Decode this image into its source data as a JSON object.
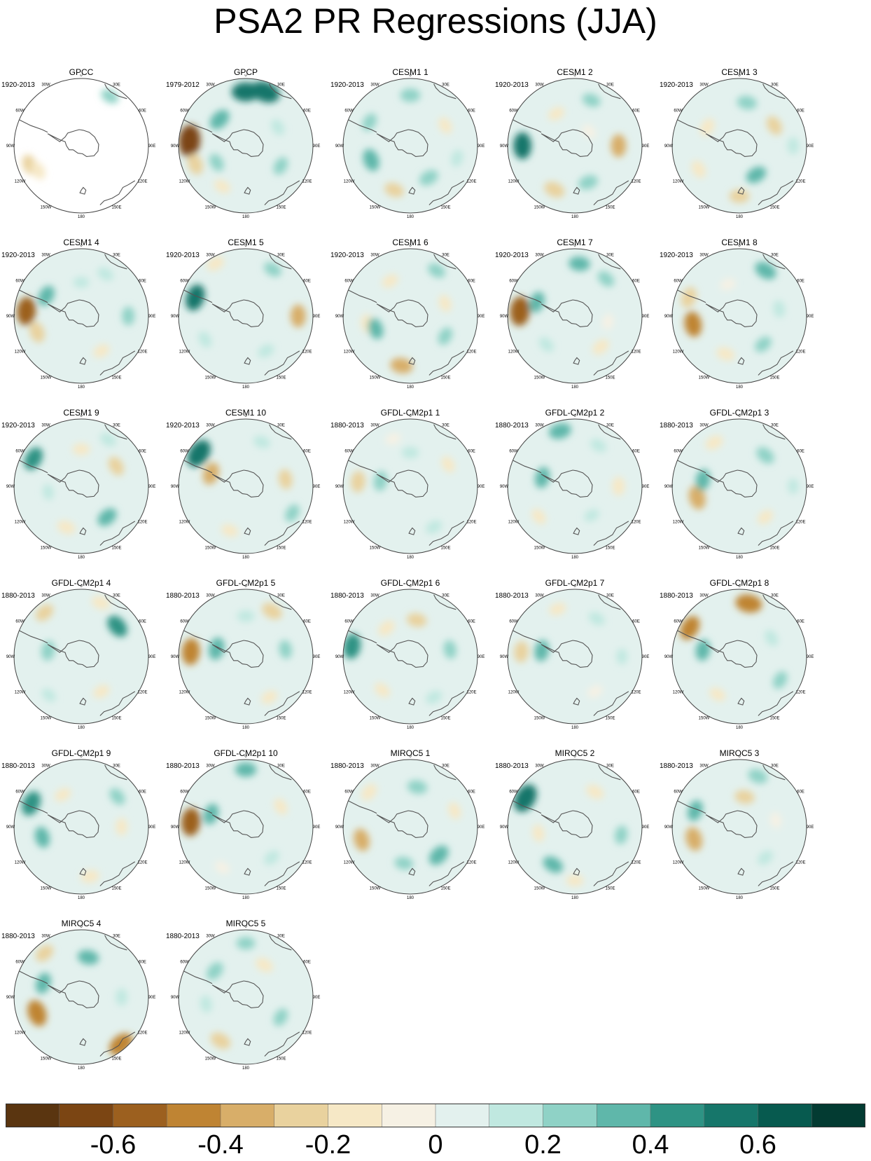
{
  "title": "PSA2 PR Regressions (JJA)",
  "lon_labels": [
    "0",
    "30E",
    "60E",
    "90E",
    "120E",
    "150E",
    "180",
    "150W",
    "120W",
    "90W",
    "60W",
    "30W"
  ],
  "panels": [
    {
      "title": "GPCC",
      "years": "1920-2013"
    },
    {
      "title": "GPCP",
      "years": "1979-2012"
    },
    {
      "title": "CESM1 1",
      "years": "1920-2013"
    },
    {
      "title": "CESM1 2",
      "years": "1920-2013"
    },
    {
      "title": "CESM1 3",
      "years": "1920-2013"
    },
    {
      "title": "CESM1 4",
      "years": "1920-2013"
    },
    {
      "title": "CESM1 5",
      "years": "1920-2013"
    },
    {
      "title": "CESM1 6",
      "years": "1920-2013"
    },
    {
      "title": "CESM1 7",
      "years": "1920-2013"
    },
    {
      "title": "CESM1 8",
      "years": "1920-2013"
    },
    {
      "title": "CESM1 9",
      "years": "1920-2013"
    },
    {
      "title": "CESM1 10",
      "years": "1920-2013"
    },
    {
      "title": "GFDL-CM2p1 1",
      "years": "1880-2013"
    },
    {
      "title": "GFDL-CM2p1 2",
      "years": "1880-2013"
    },
    {
      "title": "GFDL-CM2p1 3",
      "years": "1880-2013"
    },
    {
      "title": "GFDL-CM2p1 4",
      "years": "1880-2013"
    },
    {
      "title": "GFDL-CM2p1 5",
      "years": "1880-2013"
    },
    {
      "title": "GFDL-CM2p1 6",
      "years": "1880-2013"
    },
    {
      "title": "GFDL-CM2p1 7",
      "years": "1880-2013"
    },
    {
      "title": "GFDL-CM2p1 8",
      "years": "1880-2013"
    },
    {
      "title": "GFDL-CM2p1 9",
      "years": "1880-2013"
    },
    {
      "title": "GFDL-CM2p1 10",
      "years": "1880-2013"
    },
    {
      "title": "MIROC5 1",
      "years": "1880-2013"
    },
    {
      "title": "MIROC5 2",
      "years": "1880-2013"
    },
    {
      "title": "MIROC5 3",
      "years": "1880-2013"
    },
    {
      "title": "MIROC5 4",
      "years": "1880-2013"
    },
    {
      "title": "MIROC5 5",
      "years": "1880-2013"
    }
  ],
  "colorbar": {
    "colors": [
      "#5a3510",
      "#7b4513",
      "#9c601f",
      "#bf8433",
      "#d8ae69",
      "#e9d29e",
      "#f6e8c6",
      "#f6f1e4",
      "#e3f1ee",
      "#c0e8e0",
      "#8fd2c6",
      "#5fb7aa",
      "#2e9384",
      "#16766a",
      "#075a4f",
      "#033b32"
    ],
    "tick_values": [
      -0.6,
      -0.4,
      -0.2,
      0,
      0.2,
      0.4,
      0.6
    ],
    "tick_labels": [
      "-0.6",
      "-0.4",
      "-0.2",
      "0",
      "0.2",
      "0.4",
      "0.6"
    ]
  },
  "chart_data": {
    "type": "heatmap",
    "title": "PSA2 PR Regressions (JJA)",
    "projection": "south polar stereographic",
    "value_range": [
      -0.8,
      0.8
    ],
    "levels": [
      -0.8,
      -0.7,
      -0.6,
      -0.5,
      -0.4,
      -0.3,
      -0.2,
      -0.1,
      0,
      0.1,
      0.2,
      0.3,
      0.4,
      0.5,
      0.6,
      0.7,
      0.8
    ],
    "panel_count": 27,
    "features": [
      [
        {
          "lon": -70,
          "r": 0.82,
          "v": -0.25
        },
        {
          "lon": -60,
          "r": 0.74,
          "v": -0.2
        },
        {
          "lon": 150,
          "r": 0.85,
          "v": 0.2
        }
      ],
      [
        {
          "lon": -95,
          "r": 0.84,
          "v": -0.7
        },
        {
          "lon": -70,
          "r": 0.8,
          "v": -0.3
        },
        {
          "lon": -135,
          "r": 0.55,
          "v": 0.35
        },
        {
          "lon": 180,
          "r": 0.8,
          "v": 0.55
        },
        {
          "lon": 160,
          "r": 0.85,
          "v": 0.6
        },
        {
          "lon": -60,
          "r": 0.5,
          "v": 0.2
        },
        {
          "lon": 60,
          "r": 0.6,
          "v": 0.2
        },
        {
          "lon": -30,
          "r": 0.7,
          "v": -0.15
        },
        {
          "lon": 120,
          "r": 0.55,
          "v": 0.15
        }
      ],
      [
        {
          "lon": -20,
          "r": 0.7,
          "v": -0.25
        },
        {
          "lon": 30,
          "r": 0.55,
          "v": 0.25
        },
        {
          "lon": -70,
          "r": 0.62,
          "v": 0.35
        },
        {
          "lon": 180,
          "r": 0.75,
          "v": 0.25
        },
        {
          "lon": 120,
          "r": 0.6,
          "v": -0.15
        },
        {
          "lon": -120,
          "r": 0.7,
          "v": 0.2
        },
        {
          "lon": 75,
          "r": 0.72,
          "v": 0.15
        }
      ],
      [
        {
          "lon": -25,
          "r": 0.72,
          "v": -0.3
        },
        {
          "lon": -90,
          "r": 0.78,
          "v": 0.5
        },
        {
          "lon": 90,
          "r": 0.65,
          "v": -0.35
        },
        {
          "lon": 20,
          "r": 0.58,
          "v": 0.25
        },
        {
          "lon": 160,
          "r": 0.72,
          "v": 0.2
        },
        {
          "lon": -150,
          "r": 0.55,
          "v": -0.15
        },
        {
          "lon": 135,
          "r": 0.3,
          "v": -0.1
        }
      ],
      [
        {
          "lon": 0,
          "r": 0.75,
          "v": -0.25
        },
        {
          "lon": 30,
          "r": 0.5,
          "v": 0.3
        },
        {
          "lon": -120,
          "r": 0.55,
          "v": -0.2
        },
        {
          "lon": 120,
          "r": 0.6,
          "v": -0.25
        },
        {
          "lon": 170,
          "r": 0.65,
          "v": 0.25
        },
        {
          "lon": -60,
          "r": 0.7,
          "v": -0.2
        },
        {
          "lon": 90,
          "r": 0.8,
          "v": 0.15
        }
      ],
      [
        {
          "lon": -95,
          "r": 0.82,
          "v": -0.55
        },
        {
          "lon": -70,
          "r": 0.7,
          "v": -0.3
        },
        {
          "lon": -120,
          "r": 0.6,
          "v": 0.3
        },
        {
          "lon": 30,
          "r": 0.6,
          "v": -0.15
        },
        {
          "lon": 90,
          "r": 0.7,
          "v": 0.2
        },
        {
          "lon": 150,
          "r": 0.72,
          "v": 0.15
        },
        {
          "lon": 180,
          "r": 0.5,
          "v": 0.1
        }
      ],
      [
        {
          "lon": -110,
          "r": 0.8,
          "v": 0.5
        },
        {
          "lon": 90,
          "r": 0.78,
          "v": -0.35
        },
        {
          "lon": -150,
          "r": 0.9,
          "v": -0.2
        },
        {
          "lon": 30,
          "r": 0.6,
          "v": 0.15
        },
        {
          "lon": 150,
          "r": 0.8,
          "v": 0.2
        },
        {
          "lon": -60,
          "r": 0.7,
          "v": 0.15
        }
      ],
      [
        {
          "lon": -10,
          "r": 0.75,
          "v": -0.35
        },
        {
          "lon": -80,
          "r": 0.65,
          "v": -0.2
        },
        {
          "lon": -70,
          "r": 0.55,
          "v": 0.3
        },
        {
          "lon": 60,
          "r": 0.6,
          "v": 0.2
        },
        {
          "lon": 150,
          "r": 0.78,
          "v": 0.2
        },
        {
          "lon": -150,
          "r": 0.6,
          "v": -0.15
        },
        {
          "lon": 110,
          "r": 0.55,
          "v": -0.15
        }
      ],
      [
        {
          "lon": -95,
          "r": 0.82,
          "v": -0.6
        },
        {
          "lon": -110,
          "r": 0.6,
          "v": 0.3
        },
        {
          "lon": 175,
          "r": 0.78,
          "v": 0.3
        },
        {
          "lon": 40,
          "r": 0.6,
          "v": -0.2
        },
        {
          "lon": 140,
          "r": 0.72,
          "v": 0.2
        },
        {
          "lon": -45,
          "r": 0.6,
          "v": 0.15
        },
        {
          "lon": 80,
          "r": 0.5,
          "v": -0.1
        }
      ],
      [
        {
          "lon": -80,
          "r": 0.7,
          "v": -0.45
        },
        {
          "lon": -110,
          "r": 0.8,
          "v": -0.3
        },
        {
          "lon": 150,
          "r": 0.78,
          "v": 0.35
        },
        {
          "lon": -20,
          "r": 0.6,
          "v": -0.2
        },
        {
          "lon": 40,
          "r": 0.55,
          "v": 0.2
        },
        {
          "lon": 100,
          "r": 0.6,
          "v": 0.15
        },
        {
          "lon": -160,
          "r": 0.5,
          "v": -0.1
        }
      ],
      [
        {
          "lon": -120,
          "r": 0.82,
          "v": 0.4
        },
        {
          "lon": 120,
          "r": 0.6,
          "v": -0.25
        },
        {
          "lon": -20,
          "r": 0.65,
          "v": -0.2
        },
        {
          "lon": 40,
          "r": 0.6,
          "v": 0.3
        },
        {
          "lon": 180,
          "r": 0.55,
          "v": -0.15
        },
        {
          "lon": 150,
          "r": 0.8,
          "v": 0.15
        },
        {
          "lon": -80,
          "r": 0.5,
          "v": 0.1
        }
      ],
      [
        {
          "lon": -125,
          "r": 0.85,
          "v": 0.6
        },
        {
          "lon": -110,
          "r": 0.55,
          "v": -0.35
        },
        {
          "lon": 100,
          "r": 0.6,
          "v": -0.25
        },
        {
          "lon": 60,
          "r": 0.8,
          "v": 0.2
        },
        {
          "lon": -20,
          "r": 0.7,
          "v": -0.15
        },
        {
          "lon": 160,
          "r": 0.7,
          "v": 0.15
        }
      ],
      [
        {
          "lon": -95,
          "r": 0.78,
          "v": -0.3
        },
        {
          "lon": -100,
          "r": 0.45,
          "v": 0.25
        },
        {
          "lon": 180,
          "r": 0.5,
          "v": 0.15
        },
        {
          "lon": 30,
          "r": 0.7,
          "v": 0.15
        },
        {
          "lon": 120,
          "r": 0.65,
          "v": -0.15
        },
        {
          "lon": -160,
          "r": 0.75,
          "v": -0.1
        }
      ],
      [
        {
          "lon": -105,
          "r": 0.5,
          "v": 0.3
        },
        {
          "lon": -165,
          "r": 0.85,
          "v": 0.35
        },
        {
          "lon": 90,
          "r": 0.65,
          "v": -0.2
        },
        {
          "lon": -50,
          "r": 0.7,
          "v": -0.15
        },
        {
          "lon": 150,
          "r": 0.7,
          "v": 0.15
        },
        {
          "lon": 30,
          "r": 0.5,
          "v": 0.1
        }
      ],
      [
        {
          "lon": -75,
          "r": 0.65,
          "v": -0.4
        },
        {
          "lon": -100,
          "r": 0.55,
          "v": 0.3
        },
        {
          "lon": 140,
          "r": 0.6,
          "v": 0.25
        },
        {
          "lon": -150,
          "r": 0.75,
          "v": -0.2
        },
        {
          "lon": 40,
          "r": 0.6,
          "v": -0.15
        },
        {
          "lon": 90,
          "r": 0.8,
          "v": 0.1
        }
      ],
      [
        {
          "lon": 130,
          "r": 0.7,
          "v": 0.4
        },
        {
          "lon": -100,
          "r": 0.5,
          "v": 0.25
        },
        {
          "lon": -140,
          "r": 0.85,
          "v": -0.25
        },
        {
          "lon": 160,
          "r": 0.85,
          "v": -0.2
        },
        {
          "lon": 30,
          "r": 0.6,
          "v": -0.15
        },
        {
          "lon": -40,
          "r": 0.75,
          "v": 0.1
        }
      ],
      [
        {
          "lon": -95,
          "r": 0.82,
          "v": -0.5
        },
        {
          "lon": -105,
          "r": 0.45,
          "v": 0.35
        },
        {
          "lon": 150,
          "r": 0.78,
          "v": -0.3
        },
        {
          "lon": 100,
          "r": 0.6,
          "v": 0.2
        },
        {
          "lon": 30,
          "r": 0.7,
          "v": -0.15
        },
        {
          "lon": 180,
          "r": 0.6,
          "v": 0.15
        }
      ],
      [
        {
          "lon": -100,
          "r": 0.88,
          "v": 0.45
        },
        {
          "lon": -140,
          "r": 0.55,
          "v": -0.2
        },
        {
          "lon": 100,
          "r": 0.6,
          "v": 0.2
        },
        {
          "lon": 170,
          "r": 0.55,
          "v": -0.25
        },
        {
          "lon": 30,
          "r": 0.7,
          "v": 0.15
        },
        {
          "lon": -40,
          "r": 0.65,
          "v": -0.15
        }
      ],
      [
        {
          "lon": -95,
          "r": 0.8,
          "v": -0.3
        },
        {
          "lon": -100,
          "r": 0.5,
          "v": 0.3
        },
        {
          "lon": 150,
          "r": 0.65,
          "v": 0.15
        },
        {
          "lon": 30,
          "r": 0.6,
          "v": -0.1
        },
        {
          "lon": -160,
          "r": 0.75,
          "v": -0.15
        },
        {
          "lon": 90,
          "r": 0.7,
          "v": 0.1
        }
      ],
      [
        {
          "lon": -120,
          "r": 0.85,
          "v": -0.45
        },
        {
          "lon": 170,
          "r": 0.8,
          "v": -0.5
        },
        {
          "lon": -100,
          "r": 0.55,
          "v": 0.3
        },
        {
          "lon": 60,
          "r": 0.7,
          "v": 0.2
        },
        {
          "lon": 120,
          "r": 0.55,
          "v": 0.15
        },
        {
          "lon": -30,
          "r": 0.65,
          "v": -0.15
        }
      ],
      [
        {
          "lon": -115,
          "r": 0.82,
          "v": 0.45
        },
        {
          "lon": -75,
          "r": 0.6,
          "v": 0.3
        },
        {
          "lon": 10,
          "r": 0.75,
          "v": -0.2
        },
        {
          "lon": 130,
          "r": 0.7,
          "v": 0.2
        },
        {
          "lon": 90,
          "r": 0.6,
          "v": -0.15
        },
        {
          "lon": -150,
          "r": 0.55,
          "v": -0.15
        }
      ],
      [
        {
          "lon": -95,
          "r": 0.82,
          "v": -0.55
        },
        {
          "lon": -110,
          "r": 0.55,
          "v": 0.3
        },
        {
          "lon": 180,
          "r": 0.85,
          "v": 0.3
        },
        {
          "lon": 40,
          "r": 0.6,
          "v": 0.15
        },
        {
          "lon": 120,
          "r": 0.6,
          "v": -0.15
        },
        {
          "lon": -30,
          "r": 0.7,
          "v": -0.1
        }
      ],
      [
        {
          "lon": -75,
          "r": 0.75,
          "v": -0.35
        },
        {
          "lon": 45,
          "r": 0.6,
          "v": 0.35
        },
        {
          "lon": -130,
          "r": 0.8,
          "v": -0.2
        },
        {
          "lon": 170,
          "r": 0.6,
          "v": 0.25
        },
        {
          "lon": -10,
          "r": 0.55,
          "v": 0.2
        },
        {
          "lon": 110,
          "r": 0.7,
          "v": -0.15
        }
      ],
      [
        {
          "lon": -120,
          "r": 0.85,
          "v": 0.6
        },
        {
          "lon": -30,
          "r": 0.65,
          "v": 0.3
        },
        {
          "lon": 150,
          "r": 0.6,
          "v": -0.2
        },
        {
          "lon": 80,
          "r": 0.7,
          "v": 0.2
        },
        {
          "lon": -80,
          "r": 0.55,
          "v": -0.15
        },
        {
          "lon": 0,
          "r": 0.8,
          "v": -0.15
        }
      ],
      [
        {
          "lon": -75,
          "r": 0.7,
          "v": -0.4
        },
        {
          "lon": -110,
          "r": 0.7,
          "v": 0.3
        },
        {
          "lon": 170,
          "r": 0.45,
          "v": -0.25
        },
        {
          "lon": 160,
          "r": 0.8,
          "v": 0.25
        },
        {
          "lon": 40,
          "r": 0.6,
          "v": 0.15
        },
        {
          "lon": 100,
          "r": 0.55,
          "v": -0.1
        }
      ],
      [
        {
          "lon": -70,
          "r": 0.7,
          "v": -0.5
        },
        {
          "lon": 40,
          "r": 0.92,
          "v": -0.5
        },
        {
          "lon": -110,
          "r": 0.6,
          "v": 0.3
        },
        {
          "lon": 170,
          "r": 0.6,
          "v": 0.3
        },
        {
          "lon": -140,
          "r": 0.85,
          "v": -0.25
        },
        {
          "lon": 90,
          "r": 0.6,
          "v": 0.15
        }
      ],
      [
        {
          "lon": -30,
          "r": 0.75,
          "v": -0.3
        },
        {
          "lon": -130,
          "r": 0.6,
          "v": 0.25
        },
        {
          "lon": 150,
          "r": 0.55,
          "v": -0.2
        },
        {
          "lon": 60,
          "r": 0.6,
          "v": 0.2
        },
        {
          "lon": 180,
          "r": 0.8,
          "v": 0.2
        },
        {
          "lon": -80,
          "r": 0.6,
          "v": 0.15
        }
      ]
    ]
  }
}
